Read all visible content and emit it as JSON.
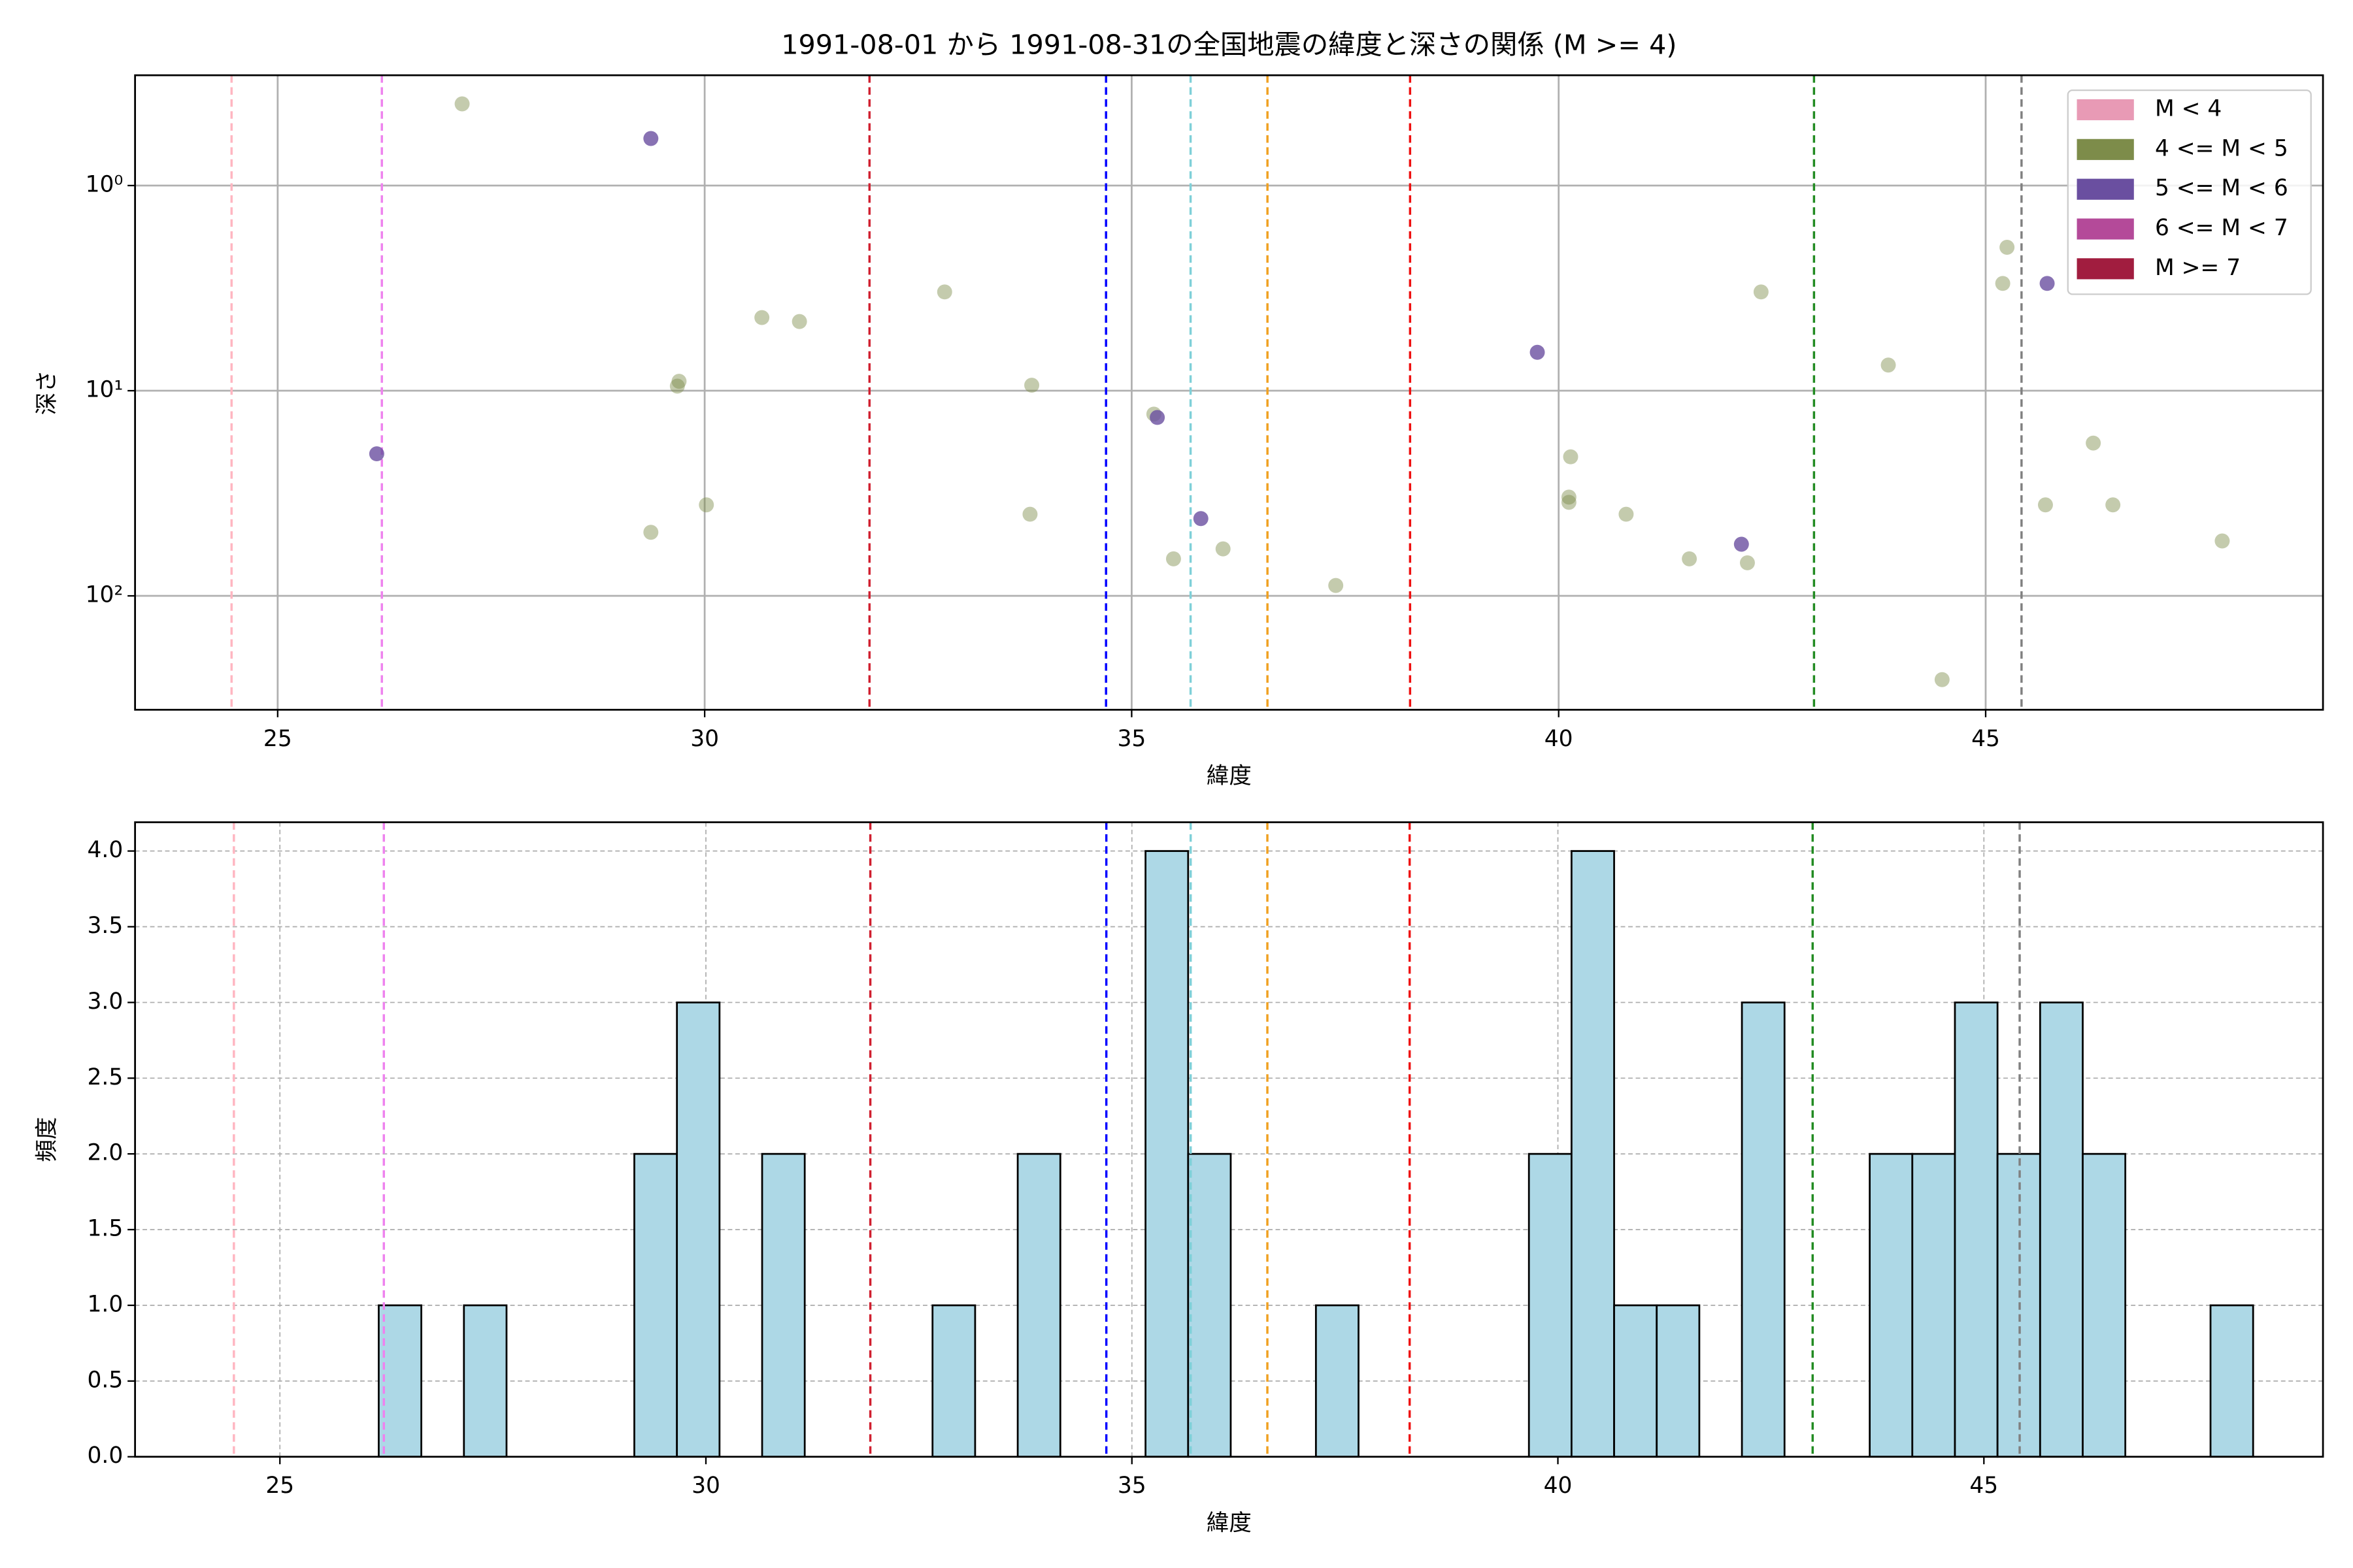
{
  "chart_data": [
    {
      "type": "scatter",
      "title": "1991-08-01 から 1991-08-31の全国地震の緯度と深さの関係 (M >= 4)",
      "x_label": "緯度",
      "y_label": "深さ",
      "xlim": [
        23.33,
        48.95
      ],
      "xticks": [
        25,
        30,
        35,
        40,
        45
      ],
      "ylim": [
        359,
        0.29
      ],
      "y_log": true,
      "yticks": [
        {
          "value": 1,
          "label": "10⁰"
        },
        {
          "value": 10,
          "label": "10¹"
        },
        {
          "value": 100,
          "label": "10²"
        }
      ],
      "grid": true,
      "legend": "upper right",
      "vlines": [
        {
          "x": 24.46,
          "color": "#ffb6c1"
        },
        {
          "x": 26.22,
          "color": "#ee82ee"
        },
        {
          "x": 31.93,
          "color": "#d02030"
        },
        {
          "x": 34.7,
          "color": "#0000ff"
        },
        {
          "x": 35.69,
          "color": "#7fd0d8"
        },
        {
          "x": 36.59,
          "color": "#f0a020"
        },
        {
          "x": 38.26,
          "color": "#ee1111"
        },
        {
          "x": 42.99,
          "color": "#228b22"
        },
        {
          "x": 45.42,
          "color": "#808080"
        }
      ],
      "series": [
        {
          "name": "M < 4",
          "color": "#e89ab5",
          "x": [],
          "values": []
        },
        {
          "name": "4 <= M < 5",
          "color": "#7d8c4a",
          "x": [
            27.16,
            29.7,
            29.68,
            29.37,
            30.02,
            30.67,
            31.11,
            32.81,
            33.83,
            33.81,
            35.26,
            35.49,
            36.07,
            37.39,
            40.14,
            40.12,
            40.12,
            40.79,
            41.53,
            42.21,
            42.37,
            43.86,
            44.49,
            45.25,
            45.2,
            46.26,
            45.7,
            46.49,
            47.77
          ],
          "values": [
            0.4,
            9.0,
            9.5,
            49,
            36,
            4.4,
            4.6,
            3.3,
            9.4,
            40,
            13,
            66,
            59,
            89,
            21,
            33,
            35,
            40,
            66,
            69,
            3.3,
            7.5,
            256,
            2.0,
            3.0,
            18,
            36,
            36,
            54
          ]
        },
        {
          "name": "5 <= M < 6",
          "color": "#6a4fa0",
          "x": [
            29.37,
            26.16,
            35.3,
            35.81,
            39.75,
            42.14,
            45.72
          ],
          "values": [
            0.59,
            20.3,
            13.5,
            42,
            6.5,
            56,
            3.0
          ]
        },
        {
          "name": "6 <= M < 7",
          "color": "#b44a99",
          "x": [],
          "values": []
        },
        {
          "name": "M >= 7",
          "color": "#a11d3f",
          "x": [],
          "values": []
        }
      ]
    },
    {
      "type": "histogram",
      "x_label": "緯度",
      "y_label": "頻度",
      "xlim": [
        23.3,
        48.98
      ],
      "xticks": [
        25,
        30,
        35,
        40,
        45
      ],
      "ylim": [
        0,
        4.19
      ],
      "yticks": [
        {
          "value": 0,
          "label": "0.0"
        },
        0.5,
        {
          "value": 1,
          "label": "1.0"
        },
        1.5,
        {
          "value": 2,
          "label": "2.0"
        },
        2.5,
        {
          "value": 3,
          "label": "3.0"
        },
        3.5,
        {
          "value": 4,
          "label": "4.0"
        }
      ],
      "grid": true,
      "color": "#add8e6",
      "vlines": [
        {
          "x": 24.46,
          "color": "#ffb6c1"
        },
        {
          "x": 26.22,
          "color": "#ee82ee"
        },
        {
          "x": 31.93,
          "color": "#d02030"
        },
        {
          "x": 34.7,
          "color": "#0000ff"
        },
        {
          "x": 35.69,
          "color": "#7fd0d8"
        },
        {
          "x": 36.59,
          "color": "#f0a020"
        },
        {
          "x": 38.26,
          "color": "#ee1111"
        },
        {
          "x": 42.99,
          "color": "#228b22"
        },
        {
          "x": 45.42,
          "color": "#808080"
        }
      ],
      "bins": [
        26.16,
        26.66,
        27.16,
        27.66,
        28.16,
        28.66,
        29.16,
        29.66,
        30.16,
        30.66,
        31.16,
        31.66,
        32.16,
        32.66,
        33.16,
        33.66,
        34.16,
        34.66,
        35.16,
        35.66,
        36.16,
        36.66,
        37.16,
        37.66,
        38.16,
        38.66,
        39.16,
        39.66,
        40.16,
        40.66,
        41.16,
        41.66,
        42.16,
        42.66,
        43.16,
        43.66,
        44.16,
        44.66,
        45.16,
        45.66,
        46.16,
        46.66,
        47.16,
        47.66,
        48.16
      ],
      "values": [
        1,
        0,
        1,
        0,
        0,
        0,
        2,
        3,
        0,
        2,
        0,
        0,
        0,
        1,
        0,
        2,
        0,
        0,
        4,
        2,
        0,
        0,
        1,
        0,
        0,
        0,
        0,
        2,
        4,
        1,
        1,
        0,
        3,
        0,
        0,
        2,
        2,
        3,
        2,
        3,
        2,
        0,
        0,
        1
      ]
    }
  ]
}
